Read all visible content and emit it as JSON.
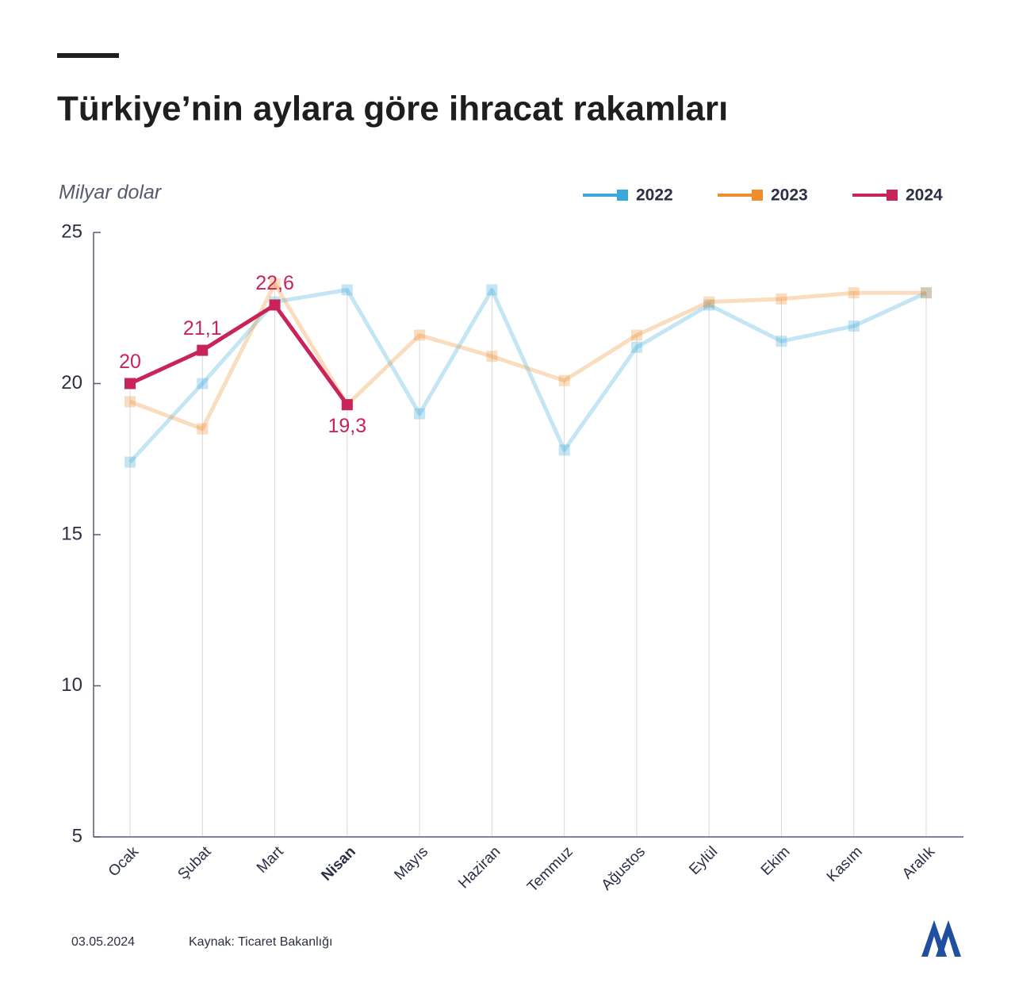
{
  "chart_data": {
    "type": "line",
    "title": "Türkiye’nin aylara göre ihracat rakamları",
    "y_label": "Milyar dolar",
    "categories": [
      "Ocak",
      "Şubat",
      "Mart",
      "Nisan",
      "Mayıs",
      "Haziran",
      "Temmuz",
      "Ağustos",
      "Eylül",
      "Ekim",
      "Kasım",
      "Aralık"
    ],
    "highlight": "Nisan",
    "series": [
      {
        "name": "2022",
        "color": "#3aa8dc",
        "values": [
          17.4,
          20.0,
          22.7,
          23.1,
          19.0,
          23.1,
          17.8,
          21.2,
          22.6,
          21.4,
          21.9,
          23.0
        ]
      },
      {
        "name": "2023",
        "color": "#f08c2a",
        "values": [
          19.4,
          18.5,
          23.3,
          19.3,
          21.6,
          20.9,
          20.1,
          21.6,
          22.7,
          22.8,
          23.0,
          23.0
        ]
      },
      {
        "name": "2024",
        "color": "#c8245a",
        "values": [
          20,
          21.1,
          22.6,
          19.3,
          null,
          null,
          null,
          null,
          null,
          null,
          null,
          null
        ],
        "value_labels": [
          "20",
          "21,1",
          "22,6",
          "19,3",
          null,
          null,
          null,
          null,
          null,
          null,
          null,
          null
        ]
      }
    ],
    "ylim": [
      5,
      25
    ],
    "yticks": [
      5,
      10,
      15,
      20,
      25
    ],
    "date": "03.05.2024",
    "source": "Kaynak: Ticaret Bakanlığı"
  }
}
